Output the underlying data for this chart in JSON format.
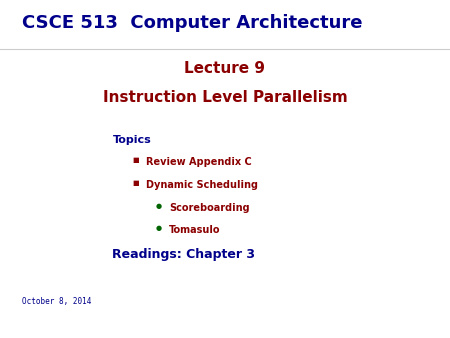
{
  "background_color": "#ffffff",
  "header_text": "CSCE 513  Computer Architecture",
  "header_color": "#00008B",
  "header_fontsize": 13,
  "title_line1": "Lecture 9",
  "title_line2": "Instruction Level Parallelism",
  "title_color": "#8B0000",
  "title_fontsize": 11,
  "topics_label": "Topics",
  "topics_color": "#00008B",
  "topics_fontsize": 8,
  "bullet1_text": "Review Appendix C",
  "bullet2_text": "Dynamic Scheduling",
  "sub_bullet1_text": "Scoreboarding",
  "sub_bullet2_text": "Tomasulo",
  "bullet_color": "#8B0000",
  "bullet_marker_color": "#8B0000",
  "sub_bullet_color": "#006400",
  "readings_text": "Readings: Chapter 3",
  "readings_color": "#00008B",
  "readings_fontsize": 9,
  "date_text": "October 8, 2014",
  "date_color": "#00008B",
  "date_fontsize": 5.5,
  "bullet_fontsize": 7,
  "sub_bullet_fontsize": 7,
  "marker_fontsize": 5
}
